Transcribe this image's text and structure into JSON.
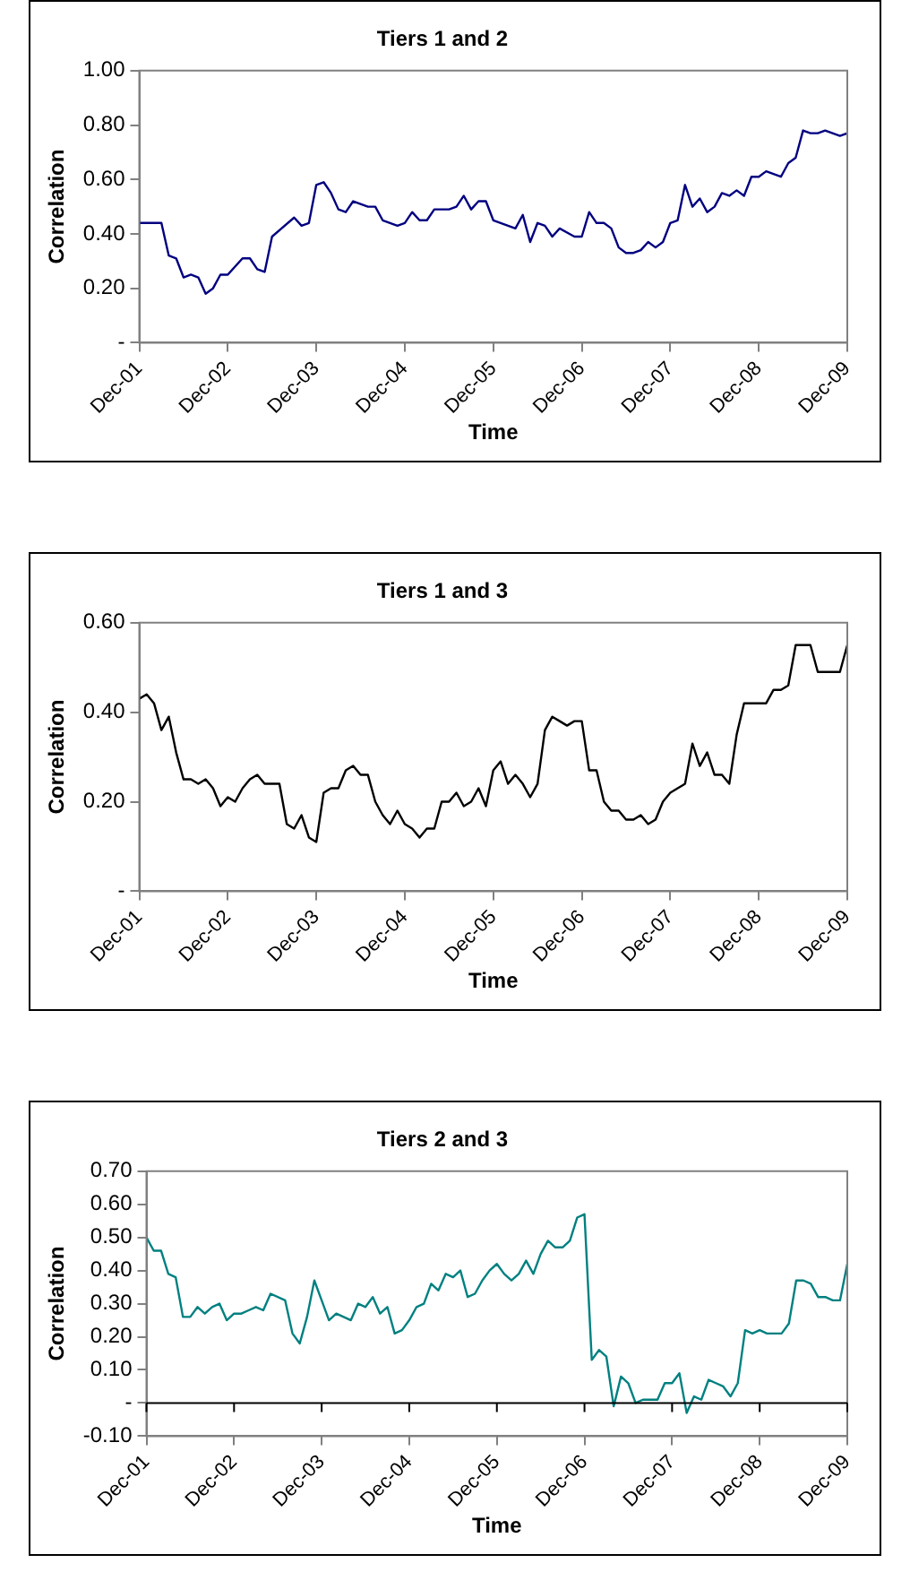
{
  "chart_data": [
    {
      "type": "line",
      "title": "Tiers 1 and 2",
      "xlabel": "Time",
      "ylabel": "Correlation",
      "color": "#000080",
      "grid": false,
      "legend": false,
      "marker": "none",
      "xlim": [
        "2001-12",
        "2009-12"
      ],
      "xticks": [
        {
          "value": "2001-12",
          "label": "Dec-01"
        },
        {
          "value": "2002-12",
          "label": "Dec-02"
        },
        {
          "value": "2003-12",
          "label": "Dec-03"
        },
        {
          "value": "2004-12",
          "label": "Dec-04"
        },
        {
          "value": "2005-12",
          "label": "Dec-05"
        },
        {
          "value": "2006-12",
          "label": "Dec-06"
        },
        {
          "value": "2007-12",
          "label": "Dec-07"
        },
        {
          "value": "2008-12",
          "label": "Dec-08"
        },
        {
          "value": "2009-12",
          "label": "Dec-09"
        }
      ],
      "ylim": [
        0,
        1
      ],
      "yticks": [
        {
          "value": 0,
          "label": "-"
        },
        {
          "value": 0.2,
          "label": "0.20"
        },
        {
          "value": 0.4,
          "label": "0.40"
        },
        {
          "value": 0.6,
          "label": "0.60"
        },
        {
          "value": 0.8,
          "label": "0.80"
        },
        {
          "value": 1,
          "label": "1.00"
        }
      ],
      "x": [
        "2001-12",
        "2002-03",
        "2002-04",
        "2002-05",
        "2002-06",
        "2002-07",
        "2002-08",
        "2002-09",
        "2002-10",
        "2002-11",
        "2002-12",
        "2003-02",
        "2003-03",
        "2003-04",
        "2003-05",
        "2003-06",
        "2003-09",
        "2003-10",
        "2003-11",
        "2003-12",
        "2004-01",
        "2004-02",
        "2004-03",
        "2004-04",
        "2004-05",
        "2004-07",
        "2004-08",
        "2004-09",
        "2004-11",
        "2004-12",
        "2005-01",
        "2005-02",
        "2005-03",
        "2005-04",
        "2005-06",
        "2005-07",
        "2005-08",
        "2005-09",
        "2005-10",
        "2005-11",
        "2005-12",
        "2006-03",
        "2006-04",
        "2006-05",
        "2006-06",
        "2006-07",
        "2006-08",
        "2006-09",
        "2006-11",
        "2006-12",
        "2007-01",
        "2007-02",
        "2007-03",
        "2007-04",
        "2007-05",
        "2007-06",
        "2007-07",
        "2007-08",
        "2007-09",
        "2007-10",
        "2007-11",
        "2007-12",
        "2008-01",
        "2008-02",
        "2008-03",
        "2008-04",
        "2008-05",
        "2008-06",
        "2008-07",
        "2008-08",
        "2008-09",
        "2008-10",
        "2008-11",
        "2008-12",
        "2009-01",
        "2009-03",
        "2009-04",
        "2009-05",
        "2009-06",
        "2009-07",
        "2009-08",
        "2009-09",
        "2009-11",
        "2009-12"
      ],
      "values": [
        0.44,
        0.44,
        0.32,
        0.31,
        0.24,
        0.25,
        0.24,
        0.18,
        0.2,
        0.25,
        0.25,
        0.31,
        0.31,
        0.27,
        0.26,
        0.39,
        0.46,
        0.43,
        0.44,
        0.58,
        0.59,
        0.55,
        0.49,
        0.48,
        0.52,
        0.5,
        0.5,
        0.45,
        0.43,
        0.44,
        0.48,
        0.45,
        0.45,
        0.49,
        0.49,
        0.5,
        0.54,
        0.49,
        0.52,
        0.52,
        0.45,
        0.42,
        0.47,
        0.37,
        0.44,
        0.43,
        0.39,
        0.42,
        0.39,
        0.39,
        0.48,
        0.44,
        0.44,
        0.42,
        0.35,
        0.33,
        0.33,
        0.34,
        0.37,
        0.35,
        0.37,
        0.44,
        0.45,
        0.58,
        0.5,
        0.53,
        0.48,
        0.5,
        0.55,
        0.54,
        0.56,
        0.54,
        0.61,
        0.61,
        0.63,
        0.61,
        0.66,
        0.68,
        0.78,
        0.77,
        0.77,
        0.78,
        0.76,
        0.77
      ]
    },
    {
      "type": "line",
      "title": "Tiers 1 and 3",
      "xlabel": "Time",
      "ylabel": "Correlation",
      "color": "#000000",
      "grid": false,
      "legend": false,
      "marker": "none",
      "xlim": [
        "2001-12",
        "2009-12"
      ],
      "xticks": [
        {
          "value": "2001-12",
          "label": "Dec-01"
        },
        {
          "value": "2002-12",
          "label": "Dec-02"
        },
        {
          "value": "2003-12",
          "label": "Dec-03"
        },
        {
          "value": "2004-12",
          "label": "Dec-04"
        },
        {
          "value": "2005-12",
          "label": "Dec-05"
        },
        {
          "value": "2006-12",
          "label": "Dec-06"
        },
        {
          "value": "2007-12",
          "label": "Dec-07"
        },
        {
          "value": "2008-12",
          "label": "Dec-08"
        },
        {
          "value": "2009-12",
          "label": "Dec-09"
        }
      ],
      "ylim": [
        0,
        0.6
      ],
      "yticks": [
        {
          "value": 0,
          "label": "-"
        },
        {
          "value": 0.2,
          "label": "0.20"
        },
        {
          "value": 0.4,
          "label": "0.40"
        },
        {
          "value": 0.6,
          "label": "0.60"
        }
      ],
      "x": [
        "2001-12",
        "2002-01",
        "2002-02",
        "2002-03",
        "2002-04",
        "2002-05",
        "2002-06",
        "2002-07",
        "2002-08",
        "2002-09",
        "2002-10",
        "2002-11",
        "2002-12",
        "2003-01",
        "2003-02",
        "2003-03",
        "2003-04",
        "2003-05",
        "2003-07",
        "2003-08",
        "2003-09",
        "2003-10",
        "2003-11",
        "2003-12",
        "2004-01",
        "2004-02",
        "2004-03",
        "2004-04",
        "2004-05",
        "2004-06",
        "2004-07",
        "2004-08",
        "2004-09",
        "2004-10",
        "2004-11",
        "2004-12",
        "2005-01",
        "2005-02",
        "2005-03",
        "2005-04",
        "2005-05",
        "2005-06",
        "2005-07",
        "2005-08",
        "2005-09",
        "2005-10",
        "2005-11",
        "2005-12",
        "2006-01",
        "2006-02",
        "2006-03",
        "2006-04",
        "2006-05",
        "2006-06",
        "2006-07",
        "2006-08",
        "2006-09",
        "2006-10",
        "2006-11",
        "2006-12",
        "2007-01",
        "2007-02",
        "2007-03",
        "2007-04",
        "2007-05",
        "2007-06",
        "2007-07",
        "2007-08",
        "2007-09",
        "2007-10",
        "2007-11",
        "2007-12",
        "2008-01",
        "2008-02",
        "2008-03",
        "2008-04",
        "2008-05",
        "2008-06",
        "2008-07",
        "2008-08",
        "2008-09",
        "2008-10",
        "2009-01",
        "2009-02",
        "2009-03",
        "2009-04",
        "2009-05",
        "2009-07",
        "2009-08",
        "2009-11",
        "2009-12"
      ],
      "values": [
        0.43,
        0.44,
        0.42,
        0.36,
        0.39,
        0.31,
        0.25,
        0.25,
        0.24,
        0.25,
        0.23,
        0.19,
        0.21,
        0.2,
        0.23,
        0.25,
        0.26,
        0.24,
        0.24,
        0.15,
        0.14,
        0.17,
        0.12,
        0.11,
        0.22,
        0.23,
        0.23,
        0.27,
        0.28,
        0.26,
        0.26,
        0.2,
        0.17,
        0.15,
        0.18,
        0.15,
        0.14,
        0.12,
        0.14,
        0.14,
        0.2,
        0.2,
        0.22,
        0.19,
        0.2,
        0.23,
        0.19,
        0.27,
        0.29,
        0.24,
        0.26,
        0.24,
        0.21,
        0.24,
        0.36,
        0.39,
        0.38,
        0.37,
        0.38,
        0.38,
        0.27,
        0.27,
        0.2,
        0.18,
        0.18,
        0.16,
        0.16,
        0.17,
        0.15,
        0.16,
        0.2,
        0.22,
        0.23,
        0.24,
        0.33,
        0.28,
        0.31,
        0.26,
        0.26,
        0.24,
        0.35,
        0.42,
        0.42,
        0.45,
        0.45,
        0.46,
        0.55,
        0.55,
        0.49,
        0.49,
        0.55
      ]
    },
    {
      "type": "line",
      "title": "Tiers 2 and 3",
      "xlabel": "Time",
      "ylabel": "Correlation",
      "color": "#008080",
      "grid": false,
      "legend": false,
      "marker": "none",
      "xlim": [
        "2001-12",
        "2009-12"
      ],
      "xticks": [
        {
          "value": "2001-12",
          "label": "Dec-01"
        },
        {
          "value": "2002-12",
          "label": "Dec-02"
        },
        {
          "value": "2003-12",
          "label": "Dec-03"
        },
        {
          "value": "2004-12",
          "label": "Dec-04"
        },
        {
          "value": "2005-12",
          "label": "Dec-05"
        },
        {
          "value": "2006-12",
          "label": "Dec-06"
        },
        {
          "value": "2007-12",
          "label": "Dec-07"
        },
        {
          "value": "2008-12",
          "label": "Dec-08"
        },
        {
          "value": "2009-12",
          "label": "Dec-09"
        }
      ],
      "ylim": [
        -0.1,
        0.7
      ],
      "yticks": [
        {
          "value": -0.1,
          "label": "-0.10"
        },
        {
          "value": 0,
          "label": "-"
        },
        {
          "value": 0.1,
          "label": "0.10"
        },
        {
          "value": 0.2,
          "label": "0.20"
        },
        {
          "value": 0.3,
          "label": "0.30"
        },
        {
          "value": 0.4,
          "label": "0.40"
        },
        {
          "value": 0.5,
          "label": "0.50"
        },
        {
          "value": 0.6,
          "label": "0.60"
        },
        {
          "value": 0.7,
          "label": "0.70"
        }
      ],
      "ref_lines": [
        {
          "axis": "y",
          "value": 0,
          "color": "#000000"
        }
      ],
      "x": [
        "2001-12",
        "2002-01",
        "2002-02",
        "2002-03",
        "2002-04",
        "2002-05",
        "2002-06",
        "2002-07",
        "2002-08",
        "2002-09",
        "2002-10",
        "2002-11",
        "2002-12",
        "2003-01",
        "2003-02",
        "2003-03",
        "2003-04",
        "2003-05",
        "2003-07",
        "2003-08",
        "2003-09",
        "2003-10",
        "2003-11",
        "2003-12",
        "2004-01",
        "2004-02",
        "2004-03",
        "2004-04",
        "2004-05",
        "2004-06",
        "2004-07",
        "2004-08",
        "2004-09",
        "2004-10",
        "2004-11",
        "2004-12",
        "2005-01",
        "2005-02",
        "2005-03",
        "2005-04",
        "2005-05",
        "2005-06",
        "2005-07",
        "2005-08",
        "2005-09",
        "2005-10",
        "2005-11",
        "2005-12",
        "2006-01",
        "2006-02",
        "2006-03",
        "2006-04",
        "2006-05",
        "2006-06",
        "2006-07",
        "2006-08",
        "2006-09",
        "2006-10",
        "2006-11",
        "2006-12",
        "2007-01",
        "2007-02",
        "2007-03",
        "2007-04",
        "2007-05",
        "2007-06",
        "2007-07",
        "2007-08",
        "2007-09",
        "2007-10",
        "2007-11",
        "2007-12",
        "2008-01",
        "2008-02",
        "2008-03",
        "2008-04",
        "2008-05",
        "2008-06",
        "2008-07",
        "2008-08",
        "2008-09",
        "2008-10",
        "2008-11",
        "2008-12",
        "2009-01",
        "2009-03",
        "2009-04",
        "2009-05",
        "2009-06",
        "2009-07",
        "2009-08",
        "2009-09",
        "2009-10",
        "2009-11",
        "2009-12"
      ],
      "values": [
        0.5,
        0.46,
        0.46,
        0.39,
        0.38,
        0.26,
        0.26,
        0.29,
        0.27,
        0.29,
        0.3,
        0.25,
        0.27,
        0.27,
        0.28,
        0.29,
        0.28,
        0.33,
        0.31,
        0.21,
        0.18,
        0.26,
        0.37,
        0.31,
        0.25,
        0.27,
        0.26,
        0.25,
        0.3,
        0.29,
        0.32,
        0.27,
        0.29,
        0.21,
        0.22,
        0.25,
        0.29,
        0.3,
        0.36,
        0.34,
        0.39,
        0.38,
        0.4,
        0.32,
        0.33,
        0.37,
        0.4,
        0.42,
        0.39,
        0.37,
        0.39,
        0.43,
        0.39,
        0.45,
        0.49,
        0.47,
        0.47,
        0.49,
        0.56,
        0.57,
        0.13,
        0.16,
        0.14,
        -0.01,
        0.08,
        0.06,
        0,
        0.01,
        0.01,
        0.01,
        0.06,
        0.06,
        0.09,
        -0.03,
        0.02,
        0.01,
        0.07,
        0.06,
        0.05,
        0.02,
        0.06,
        0.22,
        0.21,
        0.22,
        0.21,
        0.21,
        0.24,
        0.37,
        0.37,
        0.36,
        0.32,
        0.32,
        0.31,
        0.31,
        0.42
      ]
    }
  ]
}
